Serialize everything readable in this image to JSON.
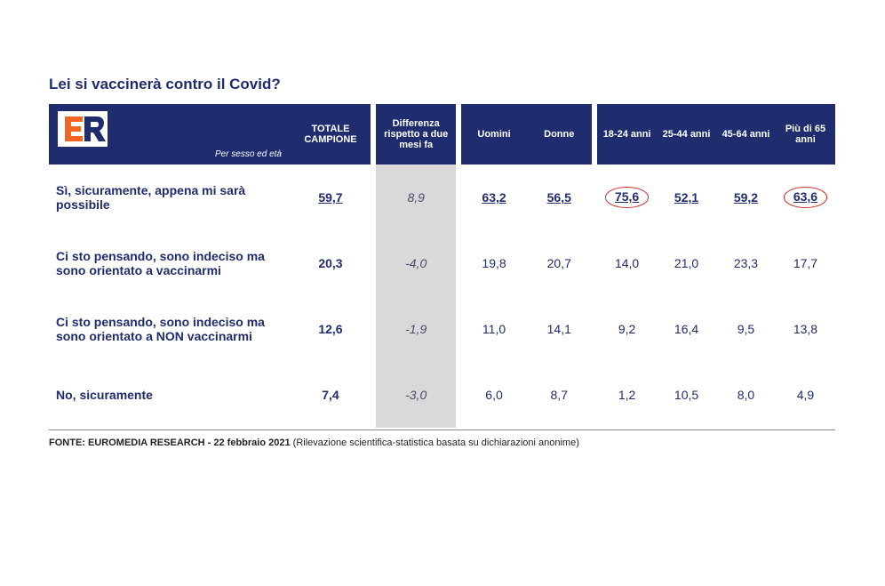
{
  "title": "Lei si vaccinerà contro il Covid?",
  "subheader": "Per sesso ed età",
  "columns": {
    "total": "TOTALE CAMPIONE",
    "diff": "Differenza rispetto a due mesi fa",
    "sex": [
      "Uomini",
      "Donne"
    ],
    "age": [
      "18-24 anni",
      "25-44 anni",
      "45-64 anni",
      "Più di 65 anni"
    ]
  },
  "rows": [
    {
      "label": "Sì, sicuramente, appena mi sarà possibile",
      "total": "59,7",
      "diff": "8,9",
      "sex": [
        "63,2",
        "56,5"
      ],
      "age": [
        "75,6",
        "52,1",
        "59,2",
        "63,6"
      ],
      "underline": true,
      "circled_age_idx": [
        0,
        3
      ]
    },
    {
      "label": "Ci sto pensando, sono indeciso ma sono orientato a vaccinarmi",
      "total": "20,3",
      "diff": "-4,0",
      "sex": [
        "19,8",
        "20,7"
      ],
      "age": [
        "14,0",
        "21,0",
        "23,3",
        "17,7"
      ],
      "underline": false,
      "circled_age_idx": []
    },
    {
      "label": "Ci sto pensando, sono indeciso ma sono orientato a NON vaccinarmi",
      "total": "12,6",
      "diff": "-1,9",
      "sex": [
        "11,0",
        "14,1"
      ],
      "age": [
        "9,2",
        "16,4",
        "9,5",
        "13,8"
      ],
      "underline": false,
      "circled_age_idx": []
    },
    {
      "label": "No, sicuramente",
      "total": "7,4",
      "diff": "-3,0",
      "sex": [
        "6,0",
        "8,7"
      ],
      "age": [
        "1,2",
        "10,5",
        "8,0",
        "4,9"
      ],
      "underline": false,
      "circled_age_idx": []
    }
  ],
  "footer_source": "FONTE: EUROMEDIA RESEARCH - 22 febbraio 2021",
  "footer_note": "(Rilevazione scientifica-statistica basata su dichiarazioni anonime)",
  "colors": {
    "brand_navy": "#1f2d6e",
    "diff_bg": "#d9d9d9",
    "circle": "#d03030",
    "logo_orange": "#f26522",
    "logo_navy": "#1f2d6e"
  }
}
